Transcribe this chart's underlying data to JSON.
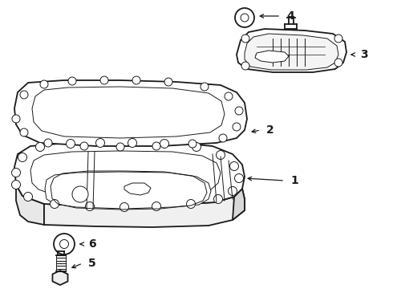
{
  "bg_color": "#ffffff",
  "line_color": "#1a1a1a",
  "line_width": 1.3,
  "thin_lw": 0.7,
  "fig_w": 4.9,
  "fig_h": 3.6,
  "dpi": 100
}
